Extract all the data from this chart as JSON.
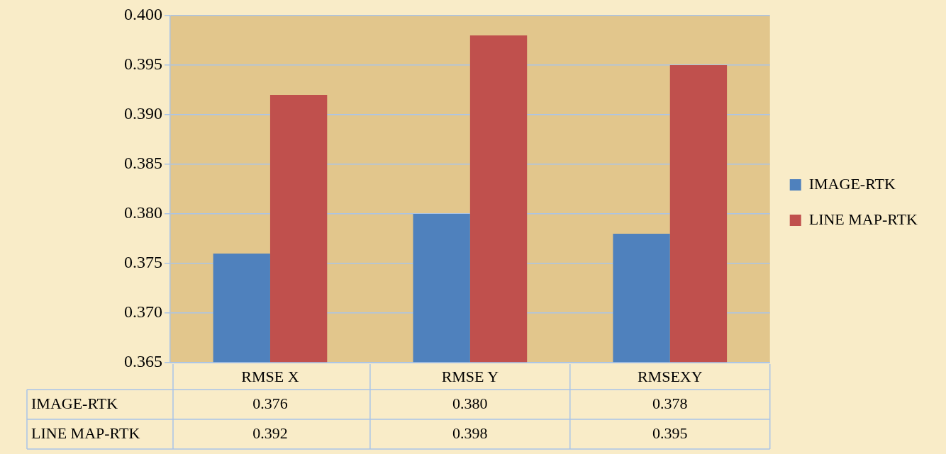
{
  "chart_data": {
    "type": "bar",
    "categories": [
      "RMSE X",
      "RMSE Y",
      "RMSEXY"
    ],
    "series": [
      {
        "name": "IMAGE-RTK",
        "color": "#4f81bd",
        "values": [
          0.376,
          0.38,
          0.378
        ],
        "value_labels": [
          "0.376",
          "0.380",
          "0.378"
        ]
      },
      {
        "name": "LINE MAP-RTK",
        "color": "#c0504d",
        "values": [
          0.392,
          0.398,
          0.395
        ],
        "value_labels": [
          "0.392",
          "0.398",
          "0.395"
        ]
      }
    ],
    "ylim": [
      0.365,
      0.4
    ],
    "yticks": [
      {
        "value": 0.365,
        "label": "0.365"
      },
      {
        "value": 0.37,
        "label": "0.370"
      },
      {
        "value": 0.375,
        "label": "0.375"
      },
      {
        "value": 0.38,
        "label": "0.380"
      },
      {
        "value": 0.385,
        "label": "0.385"
      },
      {
        "value": 0.39,
        "label": "0.390"
      },
      {
        "value": 0.395,
        "label": "0.395"
      },
      {
        "value": 0.4,
        "label": "0.400"
      }
    ],
    "grid": "y",
    "legend": "right"
  }
}
